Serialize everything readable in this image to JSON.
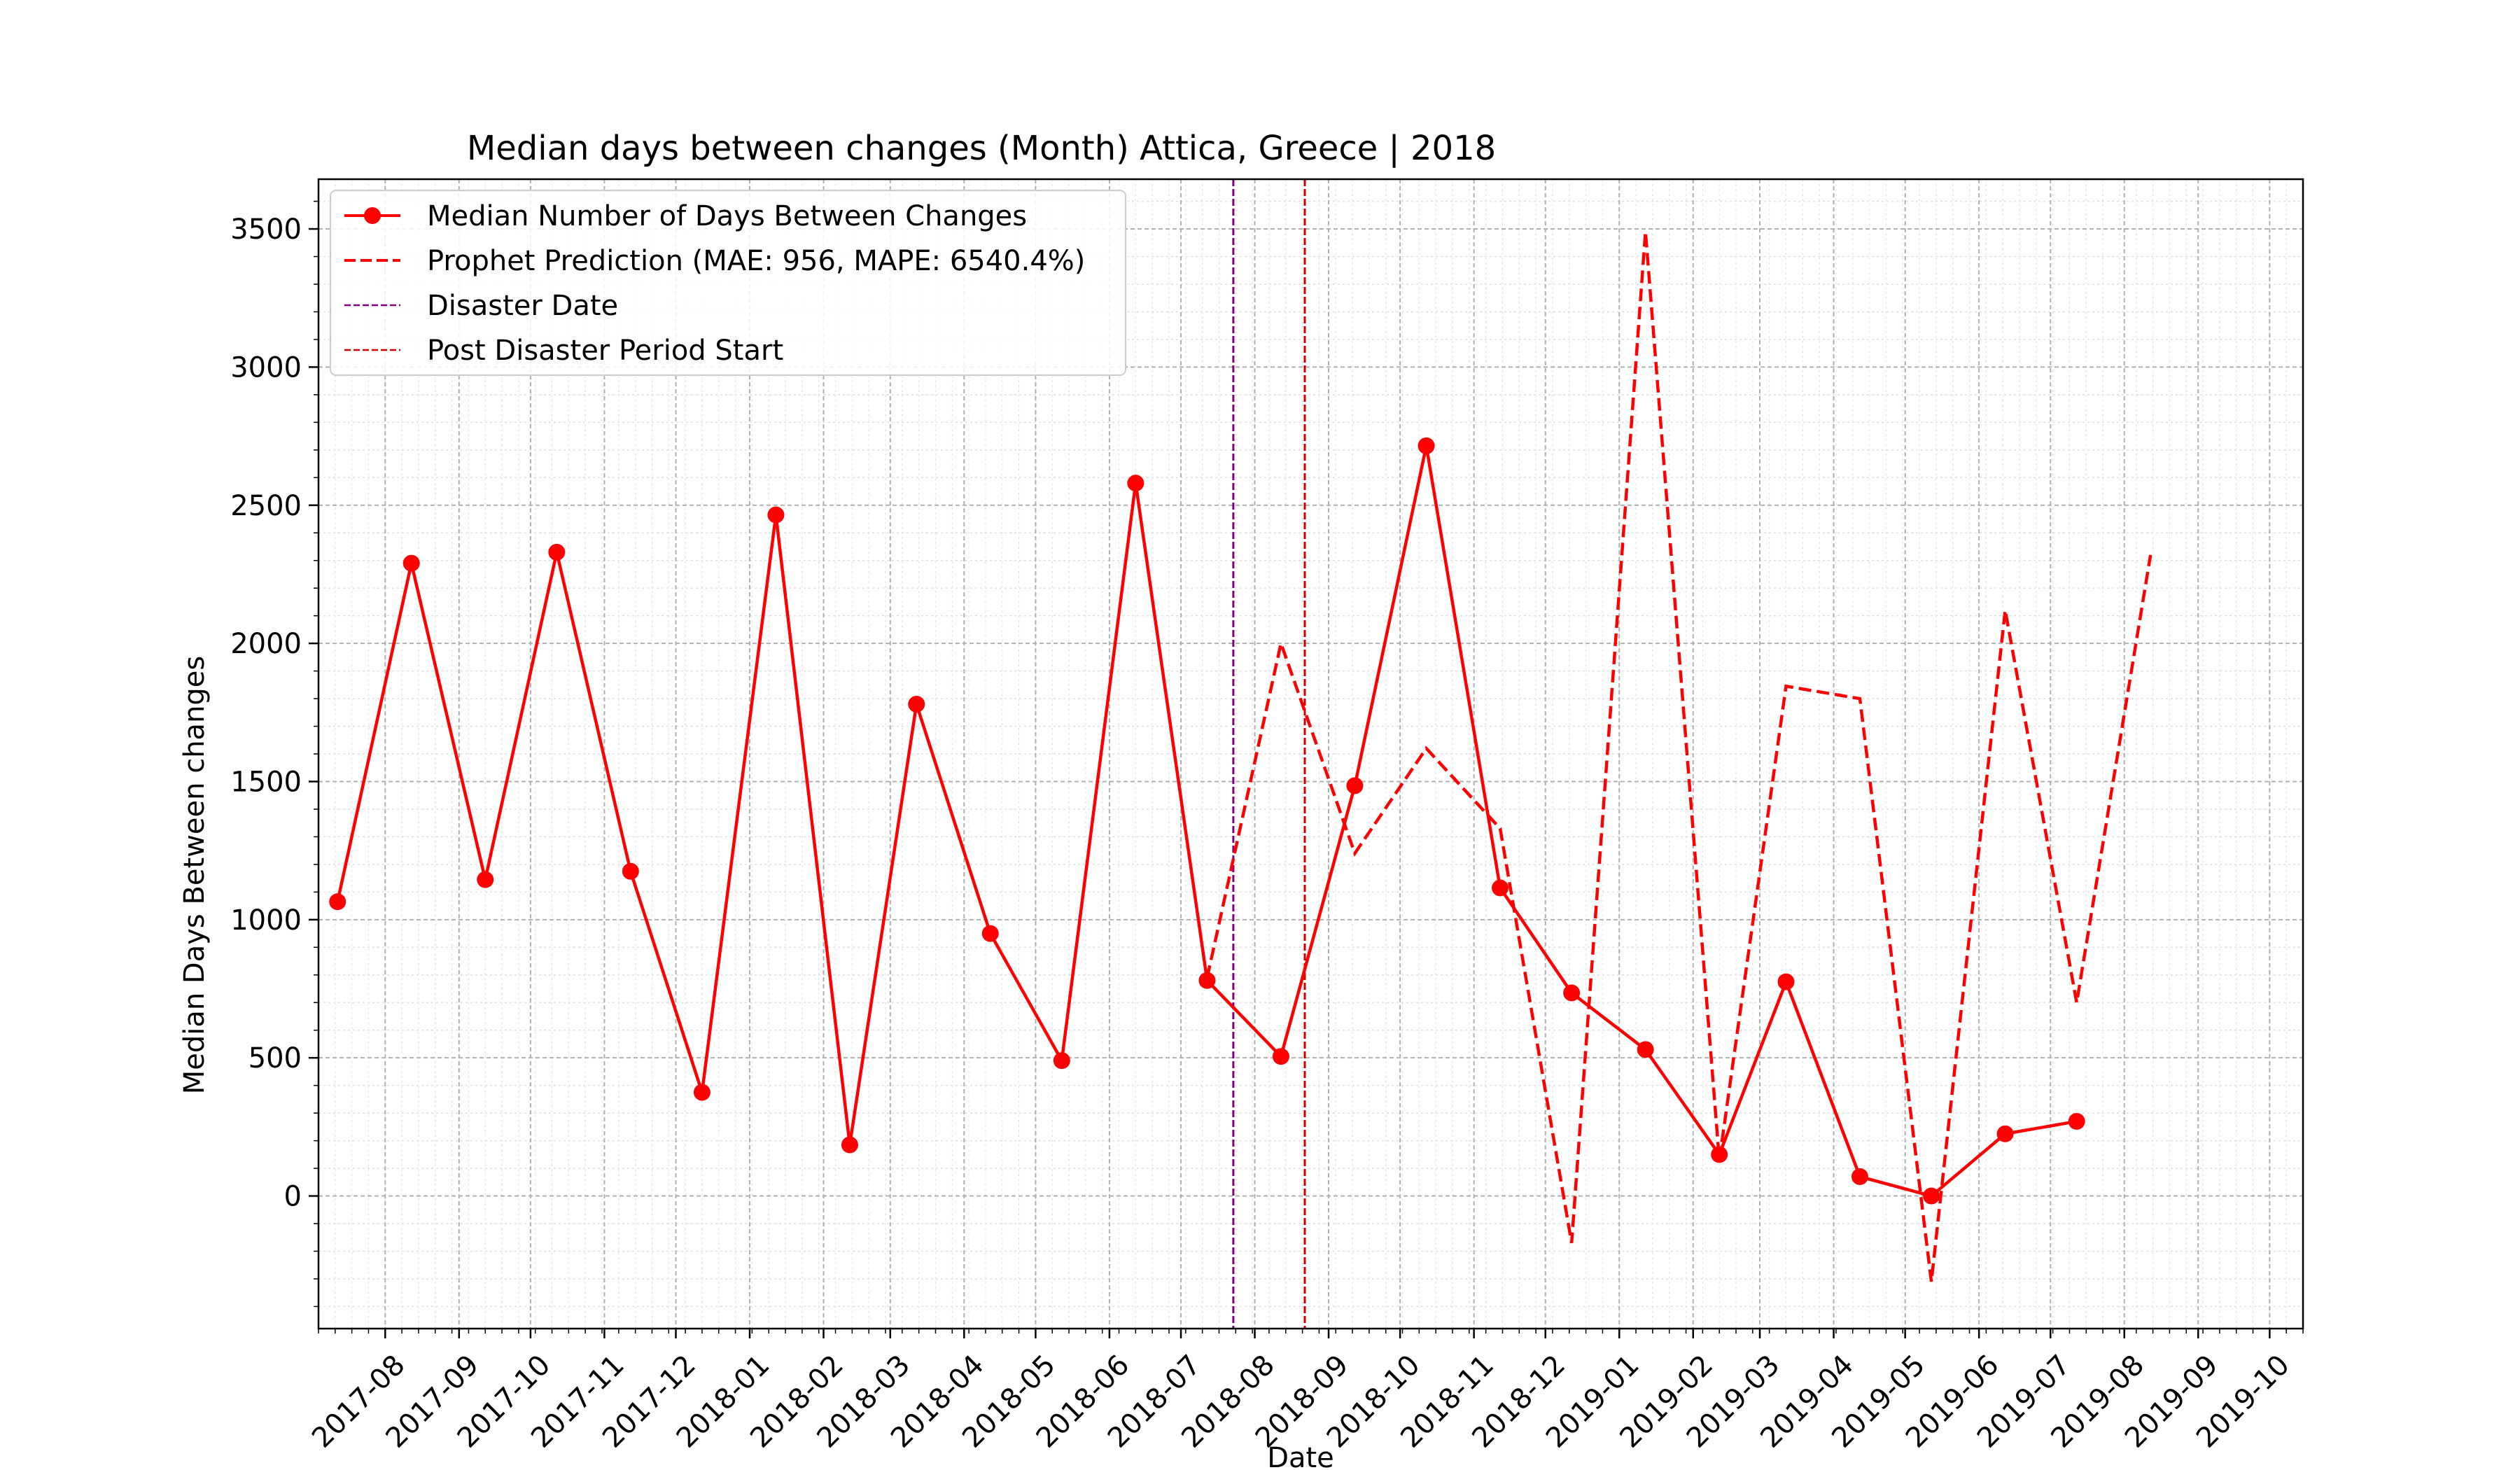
{
  "chart_data": {
    "type": "line",
    "title": "Median days between changes (Month) Attica, Greece | 2018",
    "xlabel": "Date",
    "ylabel": "Median Days Between changes",
    "ylim": [
      -480,
      3680
    ],
    "xlim": [
      "2017-07-04",
      "2019-10-15"
    ],
    "yticks": [
      0,
      500,
      1000,
      1500,
      2000,
      2500,
      3000,
      3500
    ],
    "xticks": [
      "2017-08",
      "2017-09",
      "2017-10",
      "2017-11",
      "2017-12",
      "2018-01",
      "2018-02",
      "2018-03",
      "2018-04",
      "2018-05",
      "2018-06",
      "2018-07",
      "2018-08",
      "2018-09",
      "2018-10",
      "2018-11",
      "2018-12",
      "2019-01",
      "2019-02",
      "2019-03",
      "2019-04",
      "2019-05",
      "2019-06",
      "2019-07",
      "2019-08",
      "2019-09",
      "2019-10"
    ],
    "grid": true,
    "legend_position": "top-left",
    "series": [
      {
        "name": "Median Number of Days Between Changes",
        "color": "#ff0000",
        "style": "solid-markers",
        "points": [
          {
            "x": "2017-07-12",
            "y": 1065
          },
          {
            "x": "2017-08-12",
            "y": 2290
          },
          {
            "x": "2017-09-12",
            "y": 1145
          },
          {
            "x": "2017-10-12",
            "y": 2330
          },
          {
            "x": "2017-11-12",
            "y": 1175
          },
          {
            "x": "2017-12-12",
            "y": 375
          },
          {
            "x": "2018-01-12",
            "y": 2465
          },
          {
            "x": "2018-02-12",
            "y": 185
          },
          {
            "x": "2018-03-12",
            "y": 1780
          },
          {
            "x": "2018-04-12",
            "y": 950
          },
          {
            "x": "2018-05-12",
            "y": 490
          },
          {
            "x": "2018-06-12",
            "y": 2580
          },
          {
            "x": "2018-07-12",
            "y": 780
          },
          {
            "x": "2018-08-12",
            "y": 505
          },
          {
            "x": "2018-09-12",
            "y": 1485
          },
          {
            "x": "2018-10-12",
            "y": 2715
          },
          {
            "x": "2018-11-12",
            "y": 1115
          },
          {
            "x": "2018-12-12",
            "y": 735
          },
          {
            "x": "2019-01-12",
            "y": 530
          },
          {
            "x": "2019-02-12",
            "y": 150
          },
          {
            "x": "2019-03-12",
            "y": 775
          },
          {
            "x": "2019-04-12",
            "y": 70
          },
          {
            "x": "2019-05-12",
            "y": 0
          },
          {
            "x": "2019-06-12",
            "y": 225
          },
          {
            "x": "2019-07-12",
            "y": 270
          }
        ]
      },
      {
        "name": "Prophet Prediction (MAE: 956, MAPE: 6540.4%)",
        "color": "#ff0000",
        "style": "dashed",
        "points": [
          {
            "x": "2018-07-12",
            "y": 790
          },
          {
            "x": "2018-08-12",
            "y": 2000
          },
          {
            "x": "2018-09-12",
            "y": 1240
          },
          {
            "x": "2018-10-12",
            "y": 1620
          },
          {
            "x": "2018-11-12",
            "y": 1330
          },
          {
            "x": "2018-12-12",
            "y": -170
          },
          {
            "x": "2019-01-12",
            "y": 3490
          },
          {
            "x": "2019-02-12",
            "y": 130
          },
          {
            "x": "2019-03-12",
            "y": 1845
          },
          {
            "x": "2019-04-12",
            "y": 1800
          },
          {
            "x": "2019-05-12",
            "y": -310
          },
          {
            "x": "2019-06-12",
            "y": 2120
          },
          {
            "x": "2019-07-12",
            "y": 700
          },
          {
            "x": "2019-08-12",
            "y": 2320
          }
        ]
      }
    ],
    "vlines": [
      {
        "name": "Disaster Date",
        "x": "2018-07-23",
        "color": "#800080",
        "style": "dashed"
      },
      {
        "name": "Post Disaster Period Start",
        "x": "2018-08-22",
        "color": "#cc0000",
        "style": "dashed"
      }
    ]
  }
}
